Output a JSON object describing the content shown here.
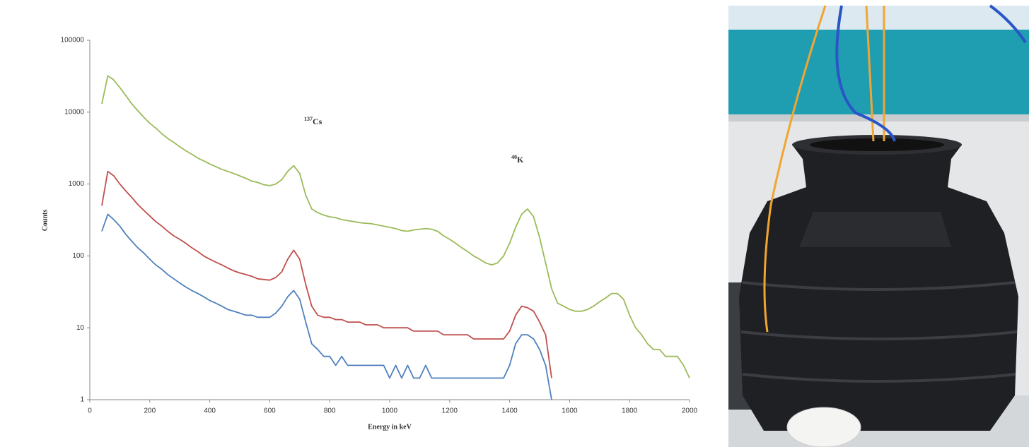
{
  "chart_data": {
    "type": "line",
    "xlabel": "Energy in keV",
    "ylabel": "Counts",
    "annotations": [
      {
        "mass": "137",
        "element": "Cs"
      },
      {
        "mass": "40",
        "element": "K"
      }
    ],
    "log_y": true,
    "grid": false,
    "xlim": [
      0,
      2000
    ],
    "xticks": [
      0,
      200,
      400,
      600,
      800,
      1000,
      1200,
      1400,
      1600,
      1800,
      2000
    ],
    "ylim": [
      1,
      100000
    ],
    "yticks": [
      1,
      10,
      100,
      1000,
      10000,
      100000
    ],
    "x": [
      40,
      60,
      80,
      100,
      120,
      140,
      160,
      180,
      200,
      220,
      240,
      260,
      280,
      300,
      320,
      340,
      360,
      380,
      400,
      420,
      440,
      460,
      480,
      500,
      520,
      540,
      560,
      580,
      600,
      620,
      640,
      660,
      680,
      700,
      720,
      740,
      760,
      780,
      800,
      820,
      840,
      860,
      880,
      900,
      920,
      940,
      960,
      980,
      1000,
      1020,
      1040,
      1060,
      1080,
      1100,
      1120,
      1140,
      1160,
      1180,
      1200,
      1220,
      1240,
      1260,
      1280,
      1300,
      1320,
      1340,
      1360,
      1380,
      1400,
      1420,
      1440,
      1460,
      1480,
      1500,
      1520,
      1540,
      1560,
      1580,
      1600,
      1620,
      1640,
      1660,
      1680,
      1700,
      1720,
      1740,
      1760,
      1780,
      1800,
      1820,
      1840,
      1860,
      1880,
      1900,
      1920,
      1940,
      1960,
      1980,
      2000
    ],
    "series": [
      {
        "color": "#9bbb59",
        "values": [
          13000,
          32000,
          28000,
          22000,
          17000,
          13000,
          10500,
          8500,
          7000,
          6000,
          5000,
          4300,
          3800,
          3300,
          2900,
          2600,
          2300,
          2100,
          1900,
          1750,
          1600,
          1500,
          1400,
          1300,
          1200,
          1100,
          1050,
          980,
          950,
          1000,
          1150,
          1500,
          1800,
          1400,
          700,
          450,
          400,
          370,
          350,
          340,
          320,
          310,
          300,
          290,
          285,
          280,
          270,
          260,
          250,
          240,
          225,
          220,
          230,
          235,
          240,
          235,
          220,
          190,
          170,
          150,
          130,
          115,
          100,
          90,
          80,
          75,
          80,
          100,
          150,
          250,
          380,
          450,
          350,
          180,
          80,
          35,
          22,
          20,
          18,
          17,
          17,
          18,
          20,
          23,
          26,
          30,
          30,
          25,
          15,
          10,
          8,
          6,
          5,
          5,
          4,
          4,
          4,
          3,
          2
        ]
      },
      {
        "color": "#c0504d",
        "values": [
          500,
          1500,
          1300,
          1000,
          800,
          650,
          520,
          430,
          360,
          300,
          260,
          220,
          190,
          170,
          150,
          130,
          115,
          100,
          90,
          82,
          75,
          68,
          62,
          58,
          55,
          52,
          48,
          47,
          46,
          50,
          60,
          90,
          120,
          90,
          40,
          20,
          15,
          14,
          14,
          13,
          13,
          12,
          12,
          12,
          11,
          11,
          11,
          10,
          10,
          10,
          10,
          10,
          9,
          9,
          9,
          9,
          9,
          8,
          8,
          8,
          8,
          8,
          7,
          7,
          7,
          7,
          7,
          7,
          9,
          15,
          20,
          19,
          17,
          12,
          8,
          2,
          null,
          null,
          null,
          null,
          null,
          null,
          null,
          null,
          null,
          null,
          null,
          null,
          null,
          null,
          null,
          null,
          null,
          null,
          null,
          null,
          null,
          null,
          null
        ]
      },
      {
        "color": "#4f81bd",
        "values": [
          220,
          380,
          320,
          260,
          200,
          160,
          130,
          110,
          90,
          75,
          65,
          55,
          48,
          42,
          37,
          33,
          30,
          27,
          24,
          22,
          20,
          18,
          17,
          16,
          15,
          15,
          14,
          14,
          14,
          16,
          20,
          27,
          33,
          25,
          12,
          6,
          5,
          4,
          4,
          3,
          4,
          3,
          3,
          3,
          3,
          3,
          3,
          3,
          2,
          3,
          2,
          3,
          2,
          2,
          3,
          2,
          2,
          2,
          2,
          2,
          2,
          2,
          2,
          2,
          2,
          2,
          2,
          2,
          3,
          6,
          8,
          8,
          7,
          5,
          3,
          1,
          null,
          null,
          null,
          null,
          null,
          null,
          null,
          null,
          null,
          null,
          null,
          null,
          null,
          null,
          null,
          null,
          null,
          null,
          null,
          null,
          null,
          null,
          null
        ]
      }
    ]
  }
}
